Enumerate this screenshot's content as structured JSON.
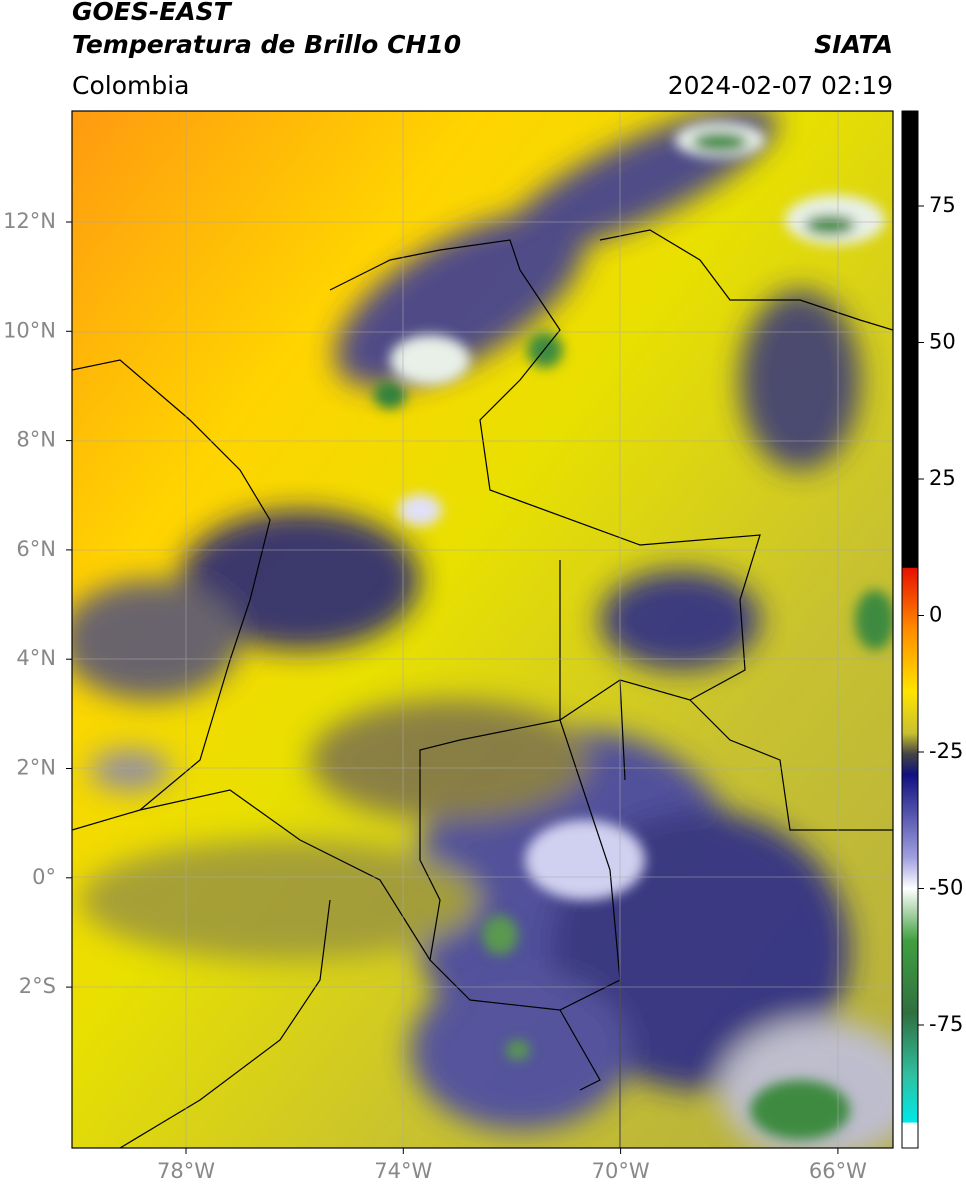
{
  "header": {
    "title": "GOES-EAST",
    "subtitle": "Temperatura de Brillo CH10",
    "region": "Colombia",
    "source": "SIATA",
    "datetime": "2024-02-07 02:19"
  },
  "map": {
    "lat_ticks": [
      "12°N",
      "10°N",
      "8°N",
      "6°N",
      "4°N",
      "2°N",
      "0°",
      "2°S"
    ],
    "lon_ticks": [
      "78°W",
      "74°W",
      "70°W",
      "66°W"
    ]
  },
  "colorbar": {
    "ticks": [
      75,
      50,
      25,
      0,
      -25,
      -50,
      -75
    ]
  }
}
